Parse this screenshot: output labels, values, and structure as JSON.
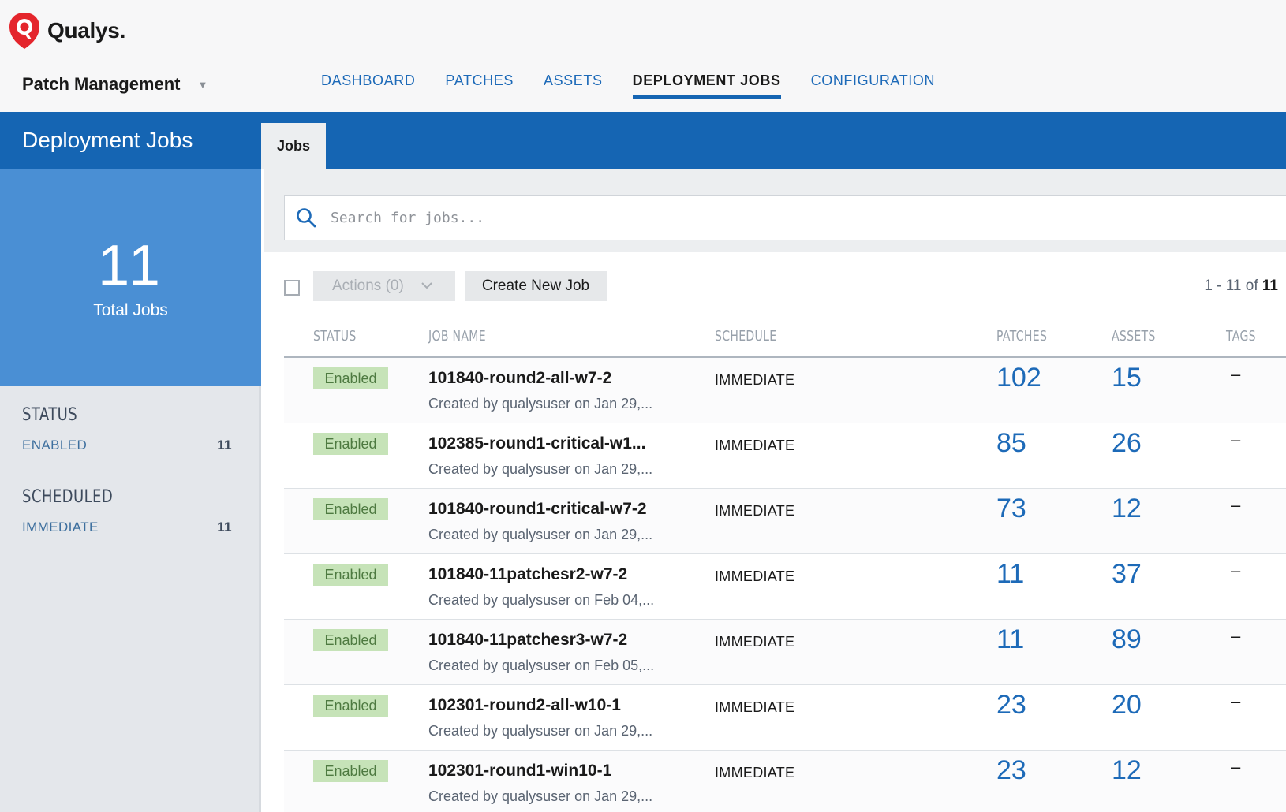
{
  "brand": {
    "name": "Qualys.",
    "accent": "#e4252c"
  },
  "app": {
    "name": "Patch Management",
    "caret": "▼"
  },
  "nav": [
    {
      "label": "DASHBOARD",
      "active": false
    },
    {
      "label": "PATCHES",
      "active": false
    },
    {
      "label": "ASSETS",
      "active": false
    },
    {
      "label": "DEPLOYMENT JOBS",
      "active": true
    },
    {
      "label": "CONFIGURATION",
      "active": false
    }
  ],
  "page": {
    "title": "Deployment Jobs",
    "tab": "Jobs"
  },
  "summary": {
    "total": "11",
    "total_label": "Total Jobs"
  },
  "filters": {
    "status": {
      "heading": "STATUS",
      "label": "ENABLED",
      "count": "11"
    },
    "scheduled": {
      "heading": "SCHEDULED",
      "label": "IMMEDIATE",
      "count": "11"
    }
  },
  "search": {
    "placeholder": "Search for jobs...",
    "value": ""
  },
  "toolbar": {
    "actions_label": "Actions (0)",
    "create_label": "Create New Job",
    "pager_range": "1 - 11 of ",
    "pager_total": "11"
  },
  "table": {
    "headers": {
      "status": "STATUS",
      "job_name": "JOB NAME",
      "schedule": "SCHEDULE",
      "patches": "PATCHES",
      "assets": "ASSETS",
      "tags": "TAGS"
    },
    "rows": [
      {
        "status": "Enabled",
        "name": "101840-round2-all-w7-2",
        "created": "Created by qualysuser on Jan 29,...",
        "schedule": "IMMEDIATE",
        "patches": "102",
        "assets": "15",
        "tags": "–"
      },
      {
        "status": "Enabled",
        "name": "102385-round1-critical-w1...",
        "created": "Created by qualysuser on Jan 29,...",
        "schedule": "IMMEDIATE",
        "patches": "85",
        "assets": "26",
        "tags": "–"
      },
      {
        "status": "Enabled",
        "name": "101840-round1-critical-w7-2",
        "created": "Created by qualysuser on Jan 29,...",
        "schedule": "IMMEDIATE",
        "patches": "73",
        "assets": "12",
        "tags": "–"
      },
      {
        "status": "Enabled",
        "name": "101840-11patchesr2-w7-2",
        "created": "Created by qualysuser on Feb 04,...",
        "schedule": "IMMEDIATE",
        "patches": "11",
        "assets": "37",
        "tags": "–"
      },
      {
        "status": "Enabled",
        "name": "101840-11patchesr3-w7-2",
        "created": "Created by qualysuser on Feb 05,...",
        "schedule": "IMMEDIATE",
        "patches": "11",
        "assets": "89",
        "tags": "–"
      },
      {
        "status": "Enabled",
        "name": "102301-round2-all-w10-1",
        "created": "Created by qualysuser on Jan 29,...",
        "schedule": "IMMEDIATE",
        "patches": "23",
        "assets": "20",
        "tags": "–"
      },
      {
        "status": "Enabled",
        "name": "102301-round1-win10-1",
        "created": "Created by qualysuser on Jan 29,...",
        "schedule": "IMMEDIATE",
        "patches": "23",
        "assets": "12",
        "tags": "–"
      }
    ]
  },
  "icons": {
    "logo": "qualys-shield-icon",
    "search": "search-icon",
    "actions": "chevron-down-icon"
  }
}
